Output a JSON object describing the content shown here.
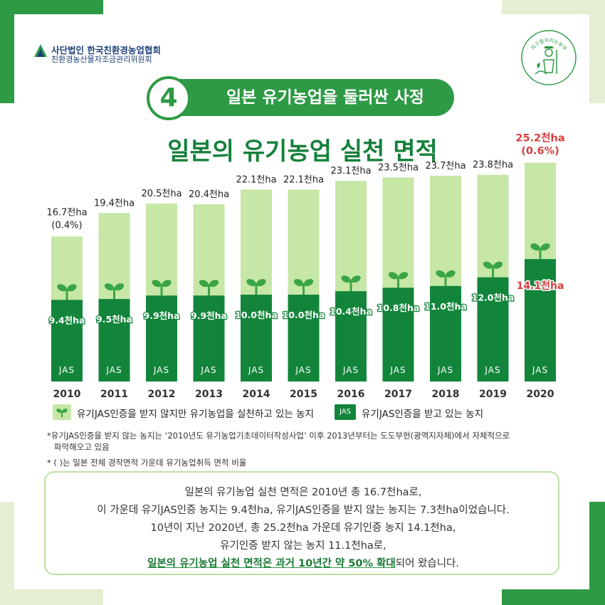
{
  "header": {
    "org_name": "사단법인 한국친환경농업협회",
    "org_sub": "친환경농산물자조금관리위원회",
    "emblem_text": "지구를지키는농부"
  },
  "section": {
    "number": "4",
    "title": "일본 유기농업을 둘러싼 사정"
  },
  "colors": {
    "light_green": "#c6e7a6",
    "dark_green": "#12853b",
    "highlight_red": "#d64040"
  },
  "chart_data": {
    "type": "bar",
    "title": "일본의 유기농업 실천 면적",
    "categories": [
      "2010",
      "2011",
      "2012",
      "2013",
      "2014",
      "2015",
      "2016",
      "2017",
      "2018",
      "2019",
      "2020"
    ],
    "series": [
      {
        "name": "유기JAS인증을 받지 않지만 유기농업을 실천하고 있는 농지",
        "role": "total",
        "values": [
          16.7,
          19.4,
          20.5,
          20.4,
          22.1,
          22.1,
          23.1,
          23.5,
          23.7,
          23.8,
          25.2
        ]
      },
      {
        "name": "유기JAS인증을 받고 있는 농지",
        "role": "certified",
        "values": [
          9.4,
          9.5,
          9.9,
          9.9,
          10.0,
          10.0,
          10.4,
          10.8,
          11.0,
          12.0,
          14.1
        ]
      }
    ],
    "total_labels": [
      "16.7천ha",
      "19.4천ha",
      "20.5천ha",
      "20.4천ha",
      "22.1천ha",
      "22.1천ha",
      "23.1천ha",
      "23.5천ha",
      "23.7천ha",
      "23.8천ha",
      "25.2천ha"
    ],
    "certified_labels": [
      "9.4천ha",
      "9.5천ha",
      "9.9천ha",
      "9.9천ha",
      "10.0천ha",
      "10.0천ha",
      "10.4천ha",
      "10.8천ha",
      "11.0천ha",
      "12.0천ha",
      "14.1천ha"
    ],
    "share_labels": {
      "0": "(0.4%)",
      "10": "(0.6%)"
    },
    "highlight_index": 10,
    "bar_badge": "JAS"
  },
  "legend": {
    "uncertified": "유기JAS인증을 받지 않지만 유기농업을 실천하고 있는 농지",
    "certified": "유기JAS인증을 받고 있는 농지",
    "badge": "JAS"
  },
  "notes": {
    "note1_line1": "*유기JAS인증을 받지 않는 농지는 ‘2010년도 유기농업기초데이터작성사업’ 이후 2013년부터는 도도부현(광역지자체)에서 자체적으로",
    "note1_line2": "파악해오고 있음",
    "note2": "* ( )는 일본 전체 경작면적 가운데 유기농업취득 면적 비율"
  },
  "summary": {
    "line1": "일본의 유기농업 실천 면적은 2010년 총 16.7천ha로,",
    "line2": "이 가운데 유기JAS인증 농지는 9.4천ha, 유기JAS인증을 받지 않는 농지는 7.3천ha이었습니다.",
    "line3": "10년이 지난 2020년, 총 25.2천ha 가운데 유기인증 농지 14.1천ha,",
    "line4": "유기인증 받지 않는 농지 11.1천ha로,",
    "line5_bold": "일본의 유기농업 실천 면적은 과거 10년간 약 50% 확대",
    "line5_rest": "되어 왔습니다."
  }
}
